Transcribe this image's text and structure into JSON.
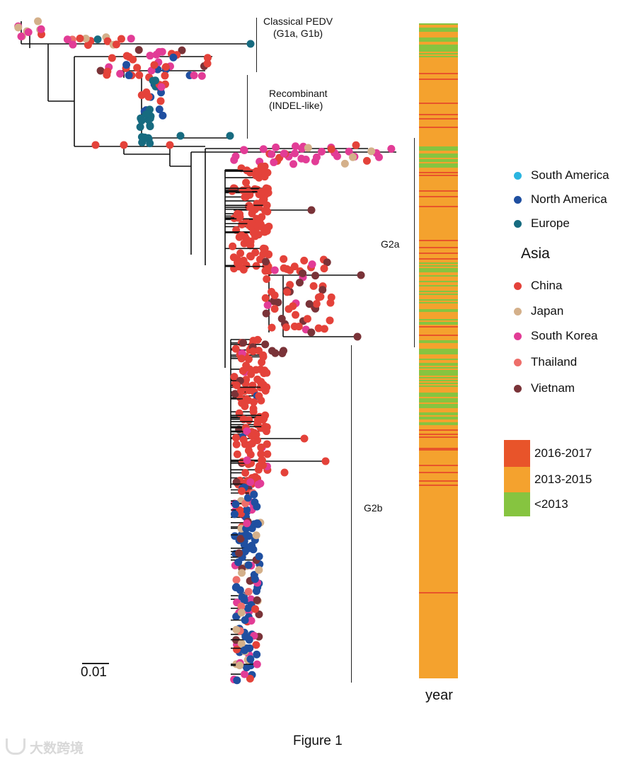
{
  "clades": {
    "classical": [
      "Classical PEDV",
      "(G1a, G1b)"
    ],
    "recombinant": [
      "Recombinant",
      "(INDEL-like)"
    ],
    "g2a": "G2a",
    "g2b": "G2b"
  },
  "scale_bar": "0.01",
  "year_bar_label": "year",
  "figure_caption": "Figure 1",
  "watermark": "大数跨境",
  "legend": {
    "regions": [
      {
        "label": "South America",
        "color": "#2bb5e0"
      },
      {
        "label": "North America",
        "color": "#1f4fa0"
      },
      {
        "label": "Europe",
        "color": "#176b80"
      }
    ],
    "asia_heading": "Asia",
    "asia": [
      {
        "label": "China",
        "color": "#e4423a"
      },
      {
        "label": "Japan",
        "color": "#d4b08a"
      },
      {
        "label": "South Korea",
        "color": "#e23c96"
      },
      {
        "label": "Thailand",
        "color": "#ee6e6a"
      },
      {
        "label": "Vietnam",
        "color": "#7a3338"
      }
    ],
    "years": [
      {
        "label": "2016-2017",
        "color": "#e8542a"
      },
      {
        "label": "2013-2015",
        "color": "#f4a22e"
      },
      {
        "label": "<2013",
        "color": "#86c440"
      }
    ]
  }
}
